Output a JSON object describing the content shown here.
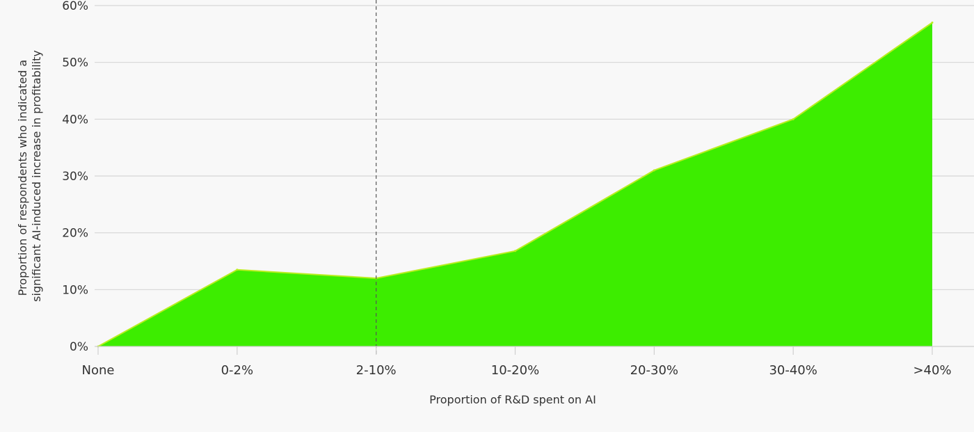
{
  "chart_data": {
    "type": "area",
    "title": "",
    "xlabel": "Proportion of R&D spent on AI",
    "ylabel_lines": [
      "Proportion of respondents who indicated a",
      "significant AI-induced increase in profitability"
    ],
    "categories": [
      "None",
      "0-2%",
      "2-10%",
      "10-20%",
      "20-30%",
      "30-40%",
      ">40%"
    ],
    "series": [
      {
        "values": [
          0,
          13.5,
          12,
          16.8,
          31,
          40,
          57
        ]
      }
    ],
    "ylim": [
      0,
      60
    ],
    "yticks": [
      0,
      10,
      20,
      30,
      40,
      50,
      60
    ],
    "ytick_labels": [
      "0%",
      "10%",
      "20%",
      "30%",
      "40%",
      "50%",
      "60%"
    ],
    "grid": true,
    "reference_line_category": "2-10%",
    "colors": {
      "fill": "#3ded00",
      "edge": "#b9ee1f",
      "grid": "#d6d6d6",
      "reference": "#555555"
    }
  }
}
